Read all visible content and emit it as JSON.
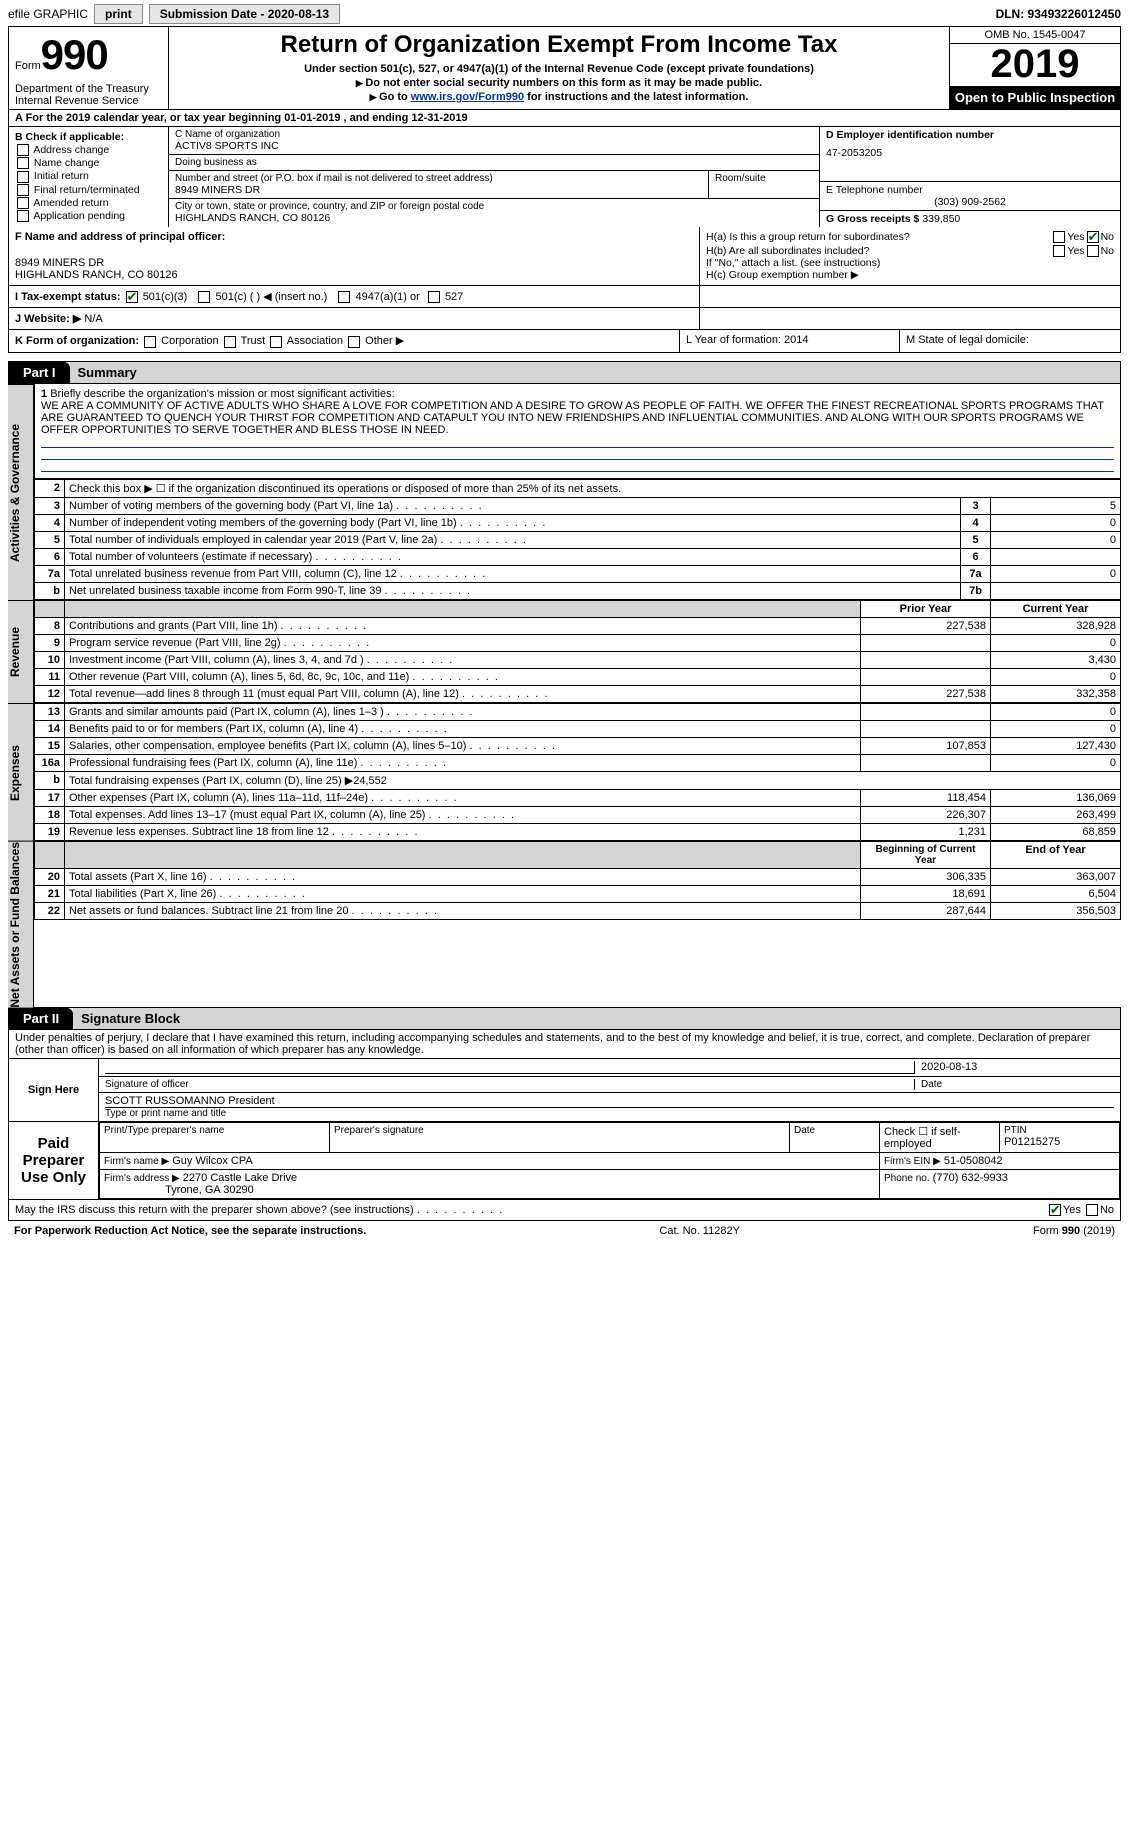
{
  "topbar": {
    "efile": "efile GRAPHIC",
    "print": "print",
    "sub_label": "Submission Date - 2020-08-13",
    "dln": "DLN: 93493226012450"
  },
  "header": {
    "form_word": "Form",
    "form_num": "990",
    "dept1": "Department of the Treasury",
    "dept2": "Internal Revenue Service",
    "title": "Return of Organization Exempt From Income Tax",
    "sub1": "Under section 501(c), 527, or 4947(a)(1) of the Internal Revenue Code (except private foundations)",
    "sub2": "Do not enter social security numbers on this form as it may be made public.",
    "sub3_pre": "Go to ",
    "sub3_link": "www.irs.gov/Form990",
    "sub3_post": " for instructions and the latest information.",
    "omb": "OMB No. 1545-0047",
    "year": "2019",
    "open": "Open to Public Inspection"
  },
  "rowA": "A For the 2019 calendar year, or tax year beginning 01-01-2019     , and ending 12-31-2019",
  "boxB": {
    "title": "B Check if applicable:",
    "opts": [
      "Address change",
      "Name change",
      "Initial return",
      "Final return/terminated",
      "Amended return",
      "Application pending"
    ]
  },
  "boxC": {
    "lbl_name": "C Name of organization",
    "name": "ACTIV8 SPORTS INC",
    "lbl_dba": "Doing business as",
    "dba": "",
    "lbl_street": "Number and street (or P.O. box if mail is not delivered to street address)",
    "street": "8949 MINERS DR",
    "lbl_room": "Room/suite",
    "room": "",
    "lbl_city": "City or town, state or province, country, and ZIP or foreign postal code",
    "city": "HIGHLANDS RANCH, CO  80126"
  },
  "boxDE": {
    "lblD": "D Employer identification number",
    "ein": "47-2053205",
    "lblE": "E Telephone number",
    "phone": "(303) 909-2562",
    "lblG": "G Gross receipts $",
    "gross": "339,850"
  },
  "boxF": {
    "lbl": "F Name and address of principal officer:",
    "l1": "",
    "l2": "8949 MINERS DR",
    "l3": "HIGHLANDS RANCH, CO  80126"
  },
  "boxH": {
    "ha": "H(a)  Is this a group return for subordinates?",
    "hb": "H(b)  Are all subordinates included?",
    "hb2": "If \"No,\" attach a list. (see instructions)",
    "hc": "H(c)  Group exemption number ▶",
    "yes": "Yes",
    "no": "No"
  },
  "rowI": {
    "lbl": "I  Tax-exempt status:",
    "o1": "501(c)(3)",
    "o2": "501(c) (   ) ◀ (insert no.)",
    "o3": "4947(a)(1) or",
    "o4": "527"
  },
  "rowJ": {
    "lbl": "J  Website: ▶",
    "val": "N/A"
  },
  "rowK": {
    "lbl": "K Form of organization:",
    "o1": "Corporation",
    "o2": "Trust",
    "o3": "Association",
    "o4": "Other ▶",
    "L": "L Year of formation: 2014",
    "M": "M State of legal domicile:"
  },
  "partI": {
    "tab": "Part I",
    "title": "Summary"
  },
  "summary": {
    "l1_lbl": "1",
    "l1_txt": "Briefly describe the organization's mission or most significant activities:",
    "mission": "WE ARE A COMMUNITY OF ACTIVE ADULTS WHO SHARE A LOVE FOR COMPETITION AND A DESIRE TO GROW AS PEOPLE OF FAITH. WE OFFER THE FINEST RECREATIONAL SPORTS PROGRAMS THAT ARE GUARANTEED TO QUENCH YOUR THIRST FOR COMPETITION AND CATAPULT YOU INTO NEW FRIENDSHIPS AND INFLUENTIAL COMMUNITIES. AND ALONG WITH OUR SPORTS PROGRAMS WE OFFER OPPORTUNITIES TO SERVE TOGETHER AND BLESS THOSE IN NEED.",
    "l2_txt": "Check this box ▶ ☐ if the organization discontinued its operations or disposed of more than 25% of its net assets.",
    "vlab_ag": "Activities & Governance",
    "vlab_rev": "Revenue",
    "vlab_exp": "Expenses",
    "vlab_na": "Net Assets or Fund Balances",
    "rows_ag": [
      {
        "n": "3",
        "t": "Number of voting members of the governing body (Part VI, line 1a)",
        "c": "3",
        "v": "5"
      },
      {
        "n": "4",
        "t": "Number of independent voting members of the governing body (Part VI, line 1b)",
        "c": "4",
        "v": "0"
      },
      {
        "n": "5",
        "t": "Total number of individuals employed in calendar year 2019 (Part V, line 2a)",
        "c": "5",
        "v": "0"
      },
      {
        "n": "6",
        "t": "Total number of volunteers (estimate if necessary)",
        "c": "6",
        "v": ""
      },
      {
        "n": "7a",
        "t": "Total unrelated business revenue from Part VIII, column (C), line 12",
        "c": "7a",
        "v": "0"
      },
      {
        "n": "b",
        "t": "Net unrelated business taxable income from Form 990-T, line 39",
        "c": "7b",
        "v": ""
      }
    ],
    "hdr_prior": "Prior Year",
    "hdr_curr": "Current Year",
    "rows_rev": [
      {
        "n": "8",
        "t": "Contributions and grants (Part VIII, line 1h)",
        "p": "227,538",
        "c": "328,928"
      },
      {
        "n": "9",
        "t": "Program service revenue (Part VIII, line 2g)",
        "p": "",
        "c": "0"
      },
      {
        "n": "10",
        "t": "Investment income (Part VIII, column (A), lines 3, 4, and 7d )",
        "p": "",
        "c": "3,430"
      },
      {
        "n": "11",
        "t": "Other revenue (Part VIII, column (A), lines 5, 6d, 8c, 9c, 10c, and 11e)",
        "p": "",
        "c": "0"
      },
      {
        "n": "12",
        "t": "Total revenue—add lines 8 through 11 (must equal Part VIII, column (A), line 12)",
        "p": "227,538",
        "c": "332,358"
      }
    ],
    "rows_exp": [
      {
        "n": "13",
        "t": "Grants and similar amounts paid (Part IX, column (A), lines 1–3 )",
        "p": "",
        "c": "0"
      },
      {
        "n": "14",
        "t": "Benefits paid to or for members (Part IX, column (A), line 4)",
        "p": "",
        "c": "0"
      },
      {
        "n": "15",
        "t": "Salaries, other compensation, employee benefits (Part IX, column (A), lines 5–10)",
        "p": "107,853",
        "c": "127,430"
      },
      {
        "n": "16a",
        "t": "Professional fundraising fees (Part IX, column (A), line 11e)",
        "p": "",
        "c": "0"
      },
      {
        "n": "b",
        "t": "Total fundraising expenses (Part IX, column (D), line 25) ▶24,552",
        "p": null,
        "c": null
      },
      {
        "n": "17",
        "t": "Other expenses (Part IX, column (A), lines 11a–11d, 11f–24e)",
        "p": "118,454",
        "c": "136,069"
      },
      {
        "n": "18",
        "t": "Total expenses. Add lines 13–17 (must equal Part IX, column (A), line 25)",
        "p": "226,307",
        "c": "263,499"
      },
      {
        "n": "19",
        "t": "Revenue less expenses. Subtract line 18 from line 12",
        "p": "1,231",
        "c": "68,859"
      }
    ],
    "hdr_boy": "Beginning of Current Year",
    "hdr_eoy": "End of Year",
    "rows_na": [
      {
        "n": "20",
        "t": "Total assets (Part X, line 16)",
        "p": "306,335",
        "c": "363,007"
      },
      {
        "n": "21",
        "t": "Total liabilities (Part X, line 26)",
        "p": "18,691",
        "c": "6,504"
      },
      {
        "n": "22",
        "t": "Net assets or fund balances. Subtract line 21 from line 20",
        "p": "287,644",
        "c": "356,503"
      }
    ]
  },
  "partII": {
    "tab": "Part II",
    "title": "Signature Block"
  },
  "sig": {
    "decl": "Under penalties of perjury, I declare that I have examined this return, including accompanying schedules and statements, and to the best of my knowledge and belief, it is true, correct, and complete. Declaration of preparer (other than officer) is based on all information of which preparer has any knowledge.",
    "sign_here": "Sign Here",
    "sig_officer": "Signature of officer",
    "date": "Date",
    "date_val": "2020-08-13",
    "officer": "SCOTT RUSSOMANNO  President",
    "type_name": "Type or print name and title",
    "paid": "Paid Preparer Use Only",
    "h1": "Print/Type preparer's name",
    "h2": "Preparer's signature",
    "h3": "Date",
    "h4": "Check ☐ if self-employed",
    "h5_lbl": "PTIN",
    "h5": "P01215275",
    "firm_name_lbl": "Firm's name    ▶",
    "firm_name": "Guy Wilcox CPA",
    "firm_ein_lbl": "Firm's EIN ▶",
    "firm_ein": "51-0508042",
    "firm_addr_lbl": "Firm's address ▶",
    "firm_addr1": "2270 Castle Lake Drive",
    "firm_addr2": "Tyrone, GA  30290",
    "phone_lbl": "Phone no.",
    "phone": "(770) 632-9933",
    "discuss": "May the IRS discuss this return with the preparer shown above? (see instructions)",
    "yes": "Yes",
    "no": "No"
  },
  "footer": {
    "l": "For Paperwork Reduction Act Notice, see the separate instructions.",
    "m": "Cat. No. 11282Y",
    "r": "Form 990 (2019)"
  }
}
